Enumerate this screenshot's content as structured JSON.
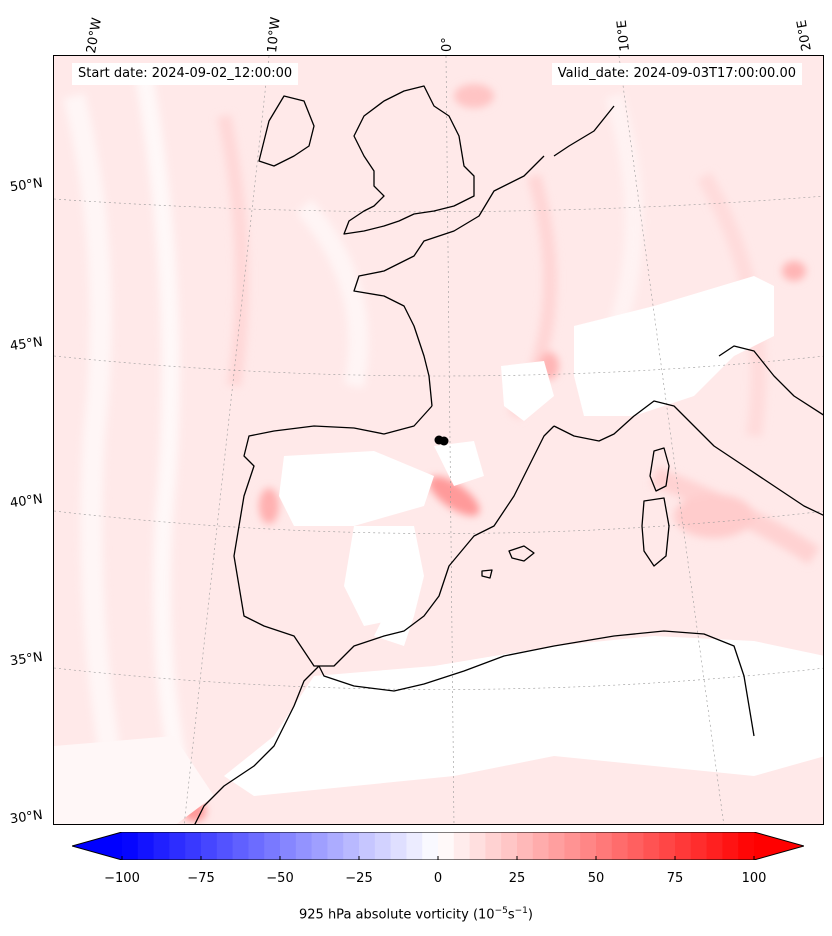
{
  "header": {
    "start_date": "Start date: 2024-09-02_12:00:00",
    "valid_date": "Valid_date: 2024-09-03T17:00:00.00"
  },
  "map": {
    "longitude_labels": [
      "20°W",
      "10°W",
      "0°",
      "10°E",
      "20°E"
    ],
    "latitude_labels": [
      "50°N",
      "45°N",
      "40°N",
      "35°N",
      "30°N"
    ]
  },
  "colorbar": {
    "label_prefix": "925 hPa absolute vorticity (10",
    "label_exp1": "−5",
    "label_mid": "s",
    "label_exp2": "−1",
    "label_suffix": ")",
    "ticks": [
      "−100",
      "−75",
      "−50",
      "−25",
      "0",
      "25",
      "50",
      "75",
      "100"
    ],
    "min": -100,
    "max": 100,
    "negative_color": "#0000ff",
    "positive_color": "#ff0000",
    "levels": 40
  },
  "chart_data": {
    "type": "heatmap",
    "title": "",
    "field": "925 hPa absolute vorticity",
    "units": "10^-5 s^-1",
    "start_date": "2024-09-02_12:00:00",
    "valid_date": "2024-09-03T17:00:00.00",
    "range": [
      -100,
      100
    ],
    "colormap": "bwr",
    "domain": "Iberian Peninsula / Western Mediterranean",
    "lon_range": [
      -20,
      20
    ],
    "lat_range": [
      30,
      55
    ],
    "marker": {
      "lon": -0.3,
      "lat": 42.0,
      "color": "#000000"
    }
  }
}
